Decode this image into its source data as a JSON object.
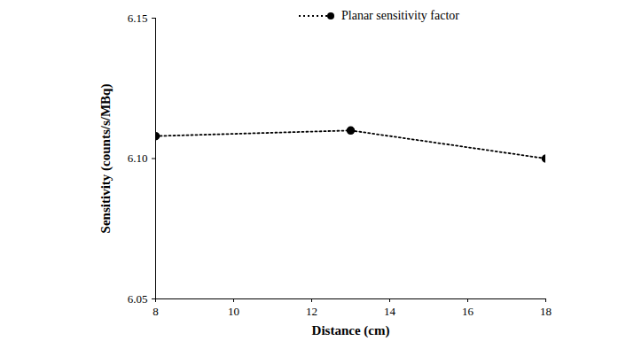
{
  "chart_data": {
    "type": "line",
    "x_label": "Distance (cm)",
    "y_label": "Sensitivity (counts/s/MBq)",
    "x": [
      8,
      13,
      18
    ],
    "series": [
      {
        "name": "Planar sensitivity factor",
        "color": "#000000",
        "values": [
          6.108,
          6.11,
          6.1
        ],
        "marker": "circle",
        "line_style": "dotted"
      }
    ],
    "xlim": [
      8,
      18
    ],
    "xticks": [
      8,
      10,
      12,
      14,
      16,
      18
    ],
    "ylim": [
      6.05,
      6.15
    ],
    "yticks": [
      6.05,
      {
        "value": 6.1,
        "label": "6.10"
      },
      6.15
    ],
    "grid": false,
    "legend": "top-right"
  }
}
